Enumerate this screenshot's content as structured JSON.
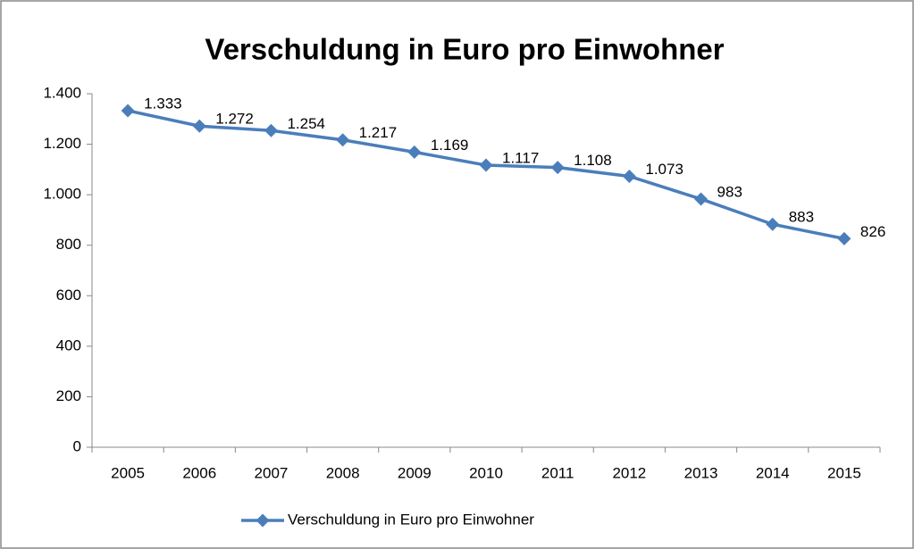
{
  "chart_data": {
    "type": "line",
    "title": "Verschuldung in Euro pro Einwohner",
    "categories": [
      "2005",
      "2006",
      "2007",
      "2008",
      "2009",
      "2010",
      "2011",
      "2012",
      "2013",
      "2014",
      "2015"
    ],
    "series": [
      {
        "name": "Verschuldung in Euro pro Einwohner",
        "color": "#4a7ebb",
        "values": [
          1333,
          1272,
          1254,
          1217,
          1169,
          1117,
          1108,
          1073,
          983,
          883,
          826
        ],
        "value_labels": [
          "1.333",
          "1.272",
          "1.254",
          "1.217",
          "1.169",
          "1.117",
          "1.108",
          "1.073",
          "983",
          "883",
          "826"
        ]
      }
    ],
    "ylim": [
      0,
      1400
    ],
    "yticks": [
      0,
      200,
      400,
      600,
      800,
      {
        "value": 1000,
        "label": "1.000"
      },
      {
        "value": 1200,
        "label": "1.200"
      },
      {
        "value": 1400,
        "label": "1.400"
      }
    ],
    "legend": "bottom"
  }
}
